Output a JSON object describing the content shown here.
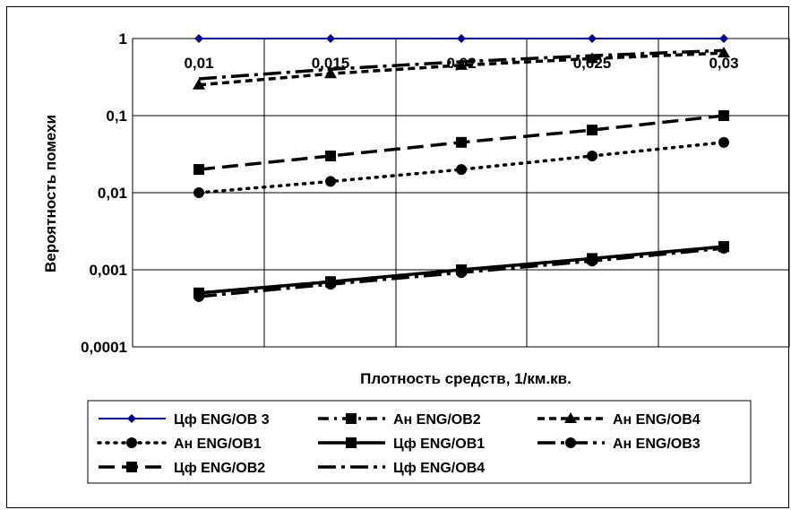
{
  "chart_data": {
    "type": "line",
    "title": "",
    "xlabel": "Плотность средств, 1/км.кв.",
    "ylabel": "Вероятность помехи",
    "y_scale": "log",
    "ylim": [
      0.0001,
      1
    ],
    "y_ticks": [
      "1",
      "0,1",
      "0,01",
      "0,001",
      "0,0001"
    ],
    "categories": [
      "0,01",
      "0,015",
      "0,02",
      "0,025",
      "0,03"
    ],
    "x": [
      0.01,
      0.015,
      0.02,
      0.025,
      0.03
    ],
    "grid": "vertical and horizontal",
    "legend_position": "bottom",
    "series": [
      {
        "name": "Цф ENG/OB 3",
        "values": [
          1,
          1,
          1,
          1,
          1
        ],
        "color": "#00008B",
        "dash": "solid",
        "marker": "diamond"
      },
      {
        "name": "Ан ENG/OB2",
        "values": [
          0.0005,
          0.0007,
          0.001,
          0.0014,
          0.002
        ],
        "color": "#000000",
        "dash": "dash-dot",
        "marker": "square"
      },
      {
        "name": "Ан ENG/OB4",
        "values": [
          0.25,
          0.35,
          0.45,
          0.55,
          0.65
        ],
        "color": "#000000",
        "dash": "dashed",
        "marker": "triangle"
      },
      {
        "name": "Ан ENG/OB1",
        "values": [
          0.01,
          0.014,
          0.02,
          0.03,
          0.045
        ],
        "color": "#000000",
        "dash": "dotted",
        "marker": "circle"
      },
      {
        "name": "Цф ENG/OB1",
        "values": [
          0.0005,
          0.0007,
          0.001,
          0.0014,
          0.002
        ],
        "color": "#000000",
        "dash": "solid",
        "marker": "square"
      },
      {
        "name": "Ан ENG/OB3",
        "values": [
          0.00045,
          0.00065,
          0.00092,
          0.0013,
          0.0019
        ],
        "color": "#000000",
        "dash": "long-dash-dot",
        "marker": "circle"
      },
      {
        "name": "Цф ENG/OB2",
        "values": [
          0.02,
          0.03,
          0.045,
          0.065,
          0.1
        ],
        "color": "#000000",
        "dash": "long-dash",
        "marker": "square"
      },
      {
        "name": "Цф ENG/OB4",
        "values": [
          0.3,
          0.4,
          0.5,
          0.6,
          0.7
        ],
        "color": "#000000",
        "dash": "long-dash-dot",
        "marker": "none"
      }
    ]
  }
}
